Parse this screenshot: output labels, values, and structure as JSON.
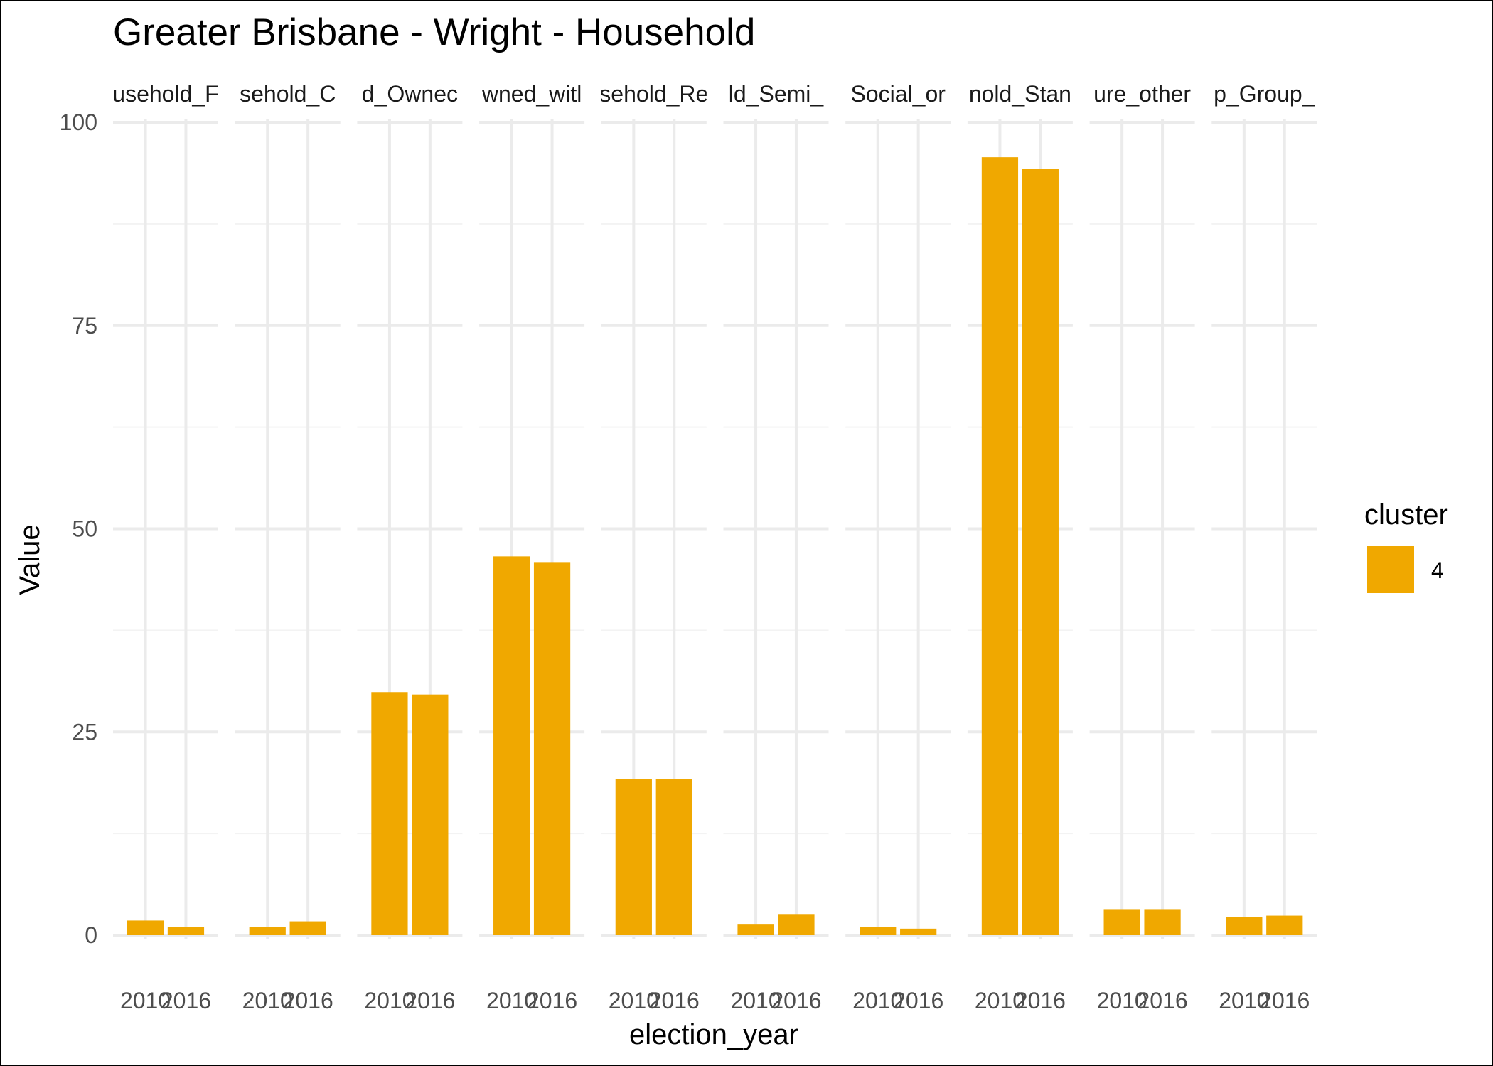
{
  "chart_data": {
    "type": "bar",
    "title": "Greater Brisbane - Wright - Household",
    "xlabel": "election_year",
    "ylabel": "Value",
    "ylim": [
      0,
      100
    ],
    "yticks": [
      0,
      25,
      50,
      75,
      100
    ],
    "x": [
      "2010",
      "2016"
    ],
    "x_tick_labels": [
      "2010",
      "2016"
    ],
    "facets": [
      {
        "label": "usehold_F",
        "values": [
          1.8,
          1.0
        ]
      },
      {
        "label": "sehold_C",
        "values": [
          1.0,
          1.7
        ]
      },
      {
        "label": "d_Ownec",
        "values": [
          29.9,
          29.6
        ]
      },
      {
        "label": "wned_witl",
        "values": [
          46.6,
          45.9
        ]
      },
      {
        "label": "sehold_Re",
        "values": [
          19.2,
          19.2
        ]
      },
      {
        "label": "ld_Semi_",
        "values": [
          1.3,
          2.6
        ]
      },
      {
        "label": "Social_or",
        "values": [
          1.0,
          0.8
        ]
      },
      {
        "label": "nold_Stan",
        "values": [
          95.7,
          94.3
        ]
      },
      {
        "label": "ure_other",
        "values": [
          3.2,
          3.2
        ]
      },
      {
        "label": "p_Group_",
        "values": [
          2.2,
          2.4
        ]
      }
    ],
    "grid": true,
    "legend": {
      "title": "cluster",
      "position": "right",
      "entries": [
        {
          "label": "4",
          "color": "#F0A800"
        }
      ]
    },
    "bar_color": "#F0A800"
  }
}
